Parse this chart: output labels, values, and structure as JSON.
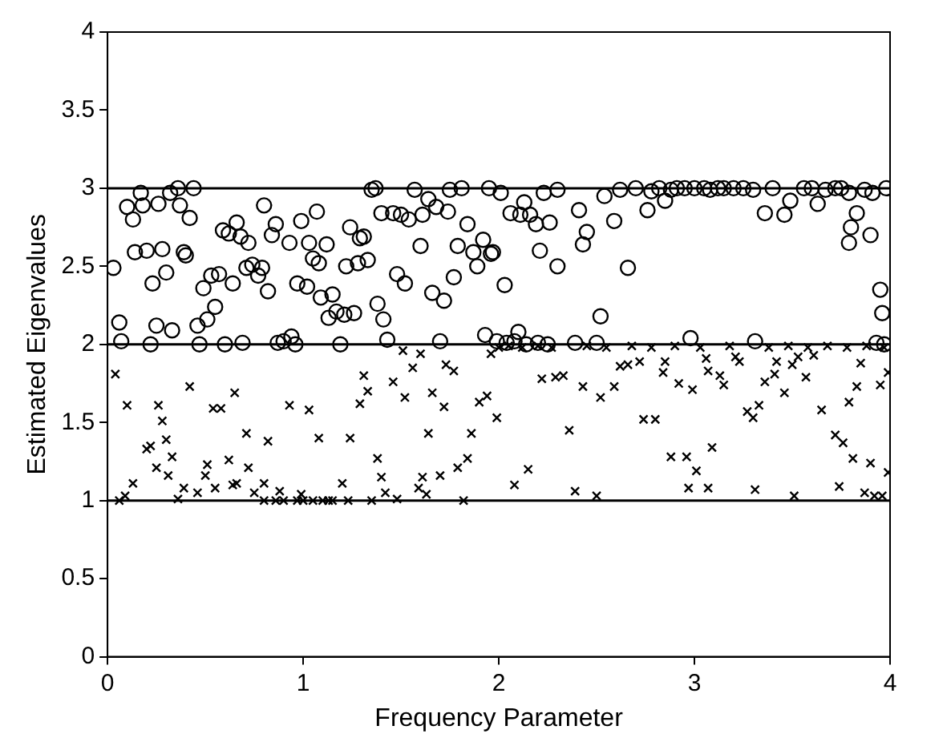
{
  "chart_data": {
    "type": "scatter",
    "xlabel": "Frequency Parameter",
    "ylabel": "Estimated Eigenvalues",
    "xlim": [
      0,
      4
    ],
    "xticks": [
      0,
      1,
      2,
      3,
      4
    ],
    "ylim": [
      0,
      4
    ],
    "yticks": [
      0,
      0.5,
      1,
      1.5,
      2,
      2.5,
      3,
      3.5,
      4
    ],
    "grid": false,
    "legend": false,
    "ref_lines": [
      {
        "axis": "y",
        "value": 1,
        "color": "#000000"
      },
      {
        "axis": "y",
        "value": 2,
        "color": "#000000"
      },
      {
        "axis": "y",
        "value": 3,
        "color": "#000000"
      }
    ],
    "series": [
      {
        "color": "#000000",
        "marker": "circle",
        "x": [
          0.03,
          0.06,
          0.07,
          0.1,
          0.13,
          0.17,
          0.18,
          0.14,
          0.2,
          0.22,
          0.23,
          0.25,
          0.26,
          0.28,
          0.3,
          0.32,
          0.33,
          0.36,
          0.37,
          0.39,
          0.4,
          0.42,
          0.44,
          0.46,
          0.47,
          0.49,
          0.51,
          0.53,
          0.55,
          0.57,
          0.59,
          0.6,
          0.62,
          0.64,
          0.66,
          0.68,
          0.69,
          0.71,
          0.72,
          0.74,
          0.77,
          0.79,
          0.8,
          0.82,
          0.84,
          0.86,
          0.87,
          0.9,
          0.93,
          0.94,
          0.96,
          0.97,
          0.99,
          1.02,
          1.03,
          1.05,
          1.07,
          1.08,
          1.09,
          1.12,
          1.13,
          1.15,
          1.17,
          1.19,
          1.21,
          1.22,
          1.24,
          1.26,
          1.28,
          1.29,
          1.31,
          1.33,
          1.35,
          1.37,
          1.38,
          1.4,
          1.41,
          1.43,
          1.46,
          1.48,
          1.5,
          1.52,
          1.54,
          1.57,
          1.6,
          1.61,
          1.64,
          1.66,
          1.68,
          1.7,
          1.72,
          1.74,
          1.75,
          1.77,
          1.79,
          1.81,
          1.84,
          1.87,
          1.89,
          1.92,
          1.93,
          1.95,
          1.96,
          1.97,
          1.99,
          2.01,
          2.03,
          2.06,
          2.1,
          2.11,
          2.13,
          2.16,
          2.19,
          2.21,
          2.23,
          2.26,
          2.3,
          2.3,
          2.39,
          2.41,
          2.43,
          2.45,
          2.5,
          2.52,
          2.54,
          2.59,
          2.66,
          2.62,
          2.7,
          2.76,
          2.78,
          2.85,
          2.91,
          2.98,
          3.0,
          3.12,
          3.2,
          3.31,
          3.36,
          3.46,
          3.49,
          3.56,
          3.63,
          3.72,
          3.79,
          3.83,
          3.91,
          3.95,
          3.96,
          3.97,
          3.98,
          3.9,
          3.8,
          3.79,
          2.04,
          2.08,
          2.14,
          2.2,
          2.25,
          2.82,
          2.88,
          2.95,
          3.05,
          3.08,
          3.15,
          3.25,
          3.3,
          3.4,
          3.6,
          3.67,
          3.75,
          3.87,
          3.93
        ],
        "values": [
          2.49,
          2.14,
          2.02,
          2.88,
          2.8,
          2.97,
          2.89,
          2.59,
          2.6,
          2.0,
          2.39,
          2.12,
          2.9,
          2.61,
          2.46,
          2.97,
          2.09,
          3.0,
          2.89,
          2.59,
          2.57,
          2.81,
          3.0,
          2.12,
          2.0,
          2.36,
          2.16,
          2.44,
          2.24,
          2.45,
          2.73,
          2.0,
          2.71,
          2.39,
          2.78,
          2.69,
          2.01,
          2.49,
          2.65,
          2.51,
          2.44,
          2.49,
          2.89,
          2.34,
          2.7,
          2.77,
          2.01,
          2.02,
          2.65,
          2.05,
          2.0,
          2.39,
          2.79,
          2.37,
          2.65,
          2.55,
          2.85,
          2.52,
          2.3,
          2.64,
          2.17,
          2.32,
          2.21,
          2.0,
          2.19,
          2.5,
          2.75,
          2.2,
          2.52,
          2.68,
          2.69,
          2.54,
          2.99,
          3.0,
          2.26,
          2.84,
          2.16,
          2.03,
          2.84,
          2.45,
          2.83,
          2.39,
          2.8,
          2.99,
          2.63,
          2.83,
          2.93,
          2.33,
          2.88,
          2.02,
          2.28,
          2.85,
          2.99,
          2.43,
          2.63,
          3.0,
          2.77,
          2.59,
          2.5,
          2.67,
          2.06,
          3.0,
          2.58,
          2.59,
          2.02,
          2.97,
          2.38,
          2.84,
          2.08,
          2.83,
          2.91,
          2.83,
          2.77,
          2.6,
          2.97,
          2.78,
          2.5,
          2.99,
          2.01,
          2.86,
          2.64,
          2.72,
          2.01,
          2.18,
          2.95,
          2.79,
          2.49,
          2.99,
          3.0,
          2.86,
          2.98,
          2.92,
          3.0,
          2.04,
          3.0,
          3.0,
          3.0,
          2.02,
          2.84,
          2.83,
          2.92,
          3.0,
          2.9,
          3.0,
          2.97,
          2.84,
          2.97,
          2.35,
          2.2,
          2.0,
          3.0,
          2.7,
          2.75,
          2.65,
          2.01,
          2.02,
          2.0,
          2.01,
          2.0,
          3.0,
          2.99,
          3.0,
          3.0,
          2.99,
          3.0,
          3.0,
          2.99,
          3.0,
          3.0,
          2.99,
          3.0,
          2.99,
          2.01
        ]
      },
      {
        "color": "#000000",
        "marker": "cross",
        "x": [
          0.04,
          0.1,
          0.13,
          0.09,
          0.06,
          0.2,
          0.22,
          0.25,
          0.26,
          0.28,
          0.3,
          0.31,
          0.33,
          0.36,
          0.39,
          0.42,
          0.46,
          0.5,
          0.51,
          0.54,
          0.55,
          0.58,
          0.62,
          0.64,
          0.65,
          0.66,
          0.71,
          0.72,
          0.75,
          0.8,
          0.82,
          0.86,
          0.88,
          0.93,
          0.97,
          0.99,
          1.03,
          1.08,
          1.13,
          1.2,
          1.23,
          1.24,
          1.29,
          1.31,
          1.33,
          1.35,
          1.38,
          1.4,
          1.42,
          1.46,
          1.48,
          1.51,
          1.52,
          1.56,
          1.59,
          1.6,
          1.61,
          1.63,
          1.64,
          1.66,
          1.7,
          1.72,
          1.73,
          1.77,
          1.79,
          1.82,
          1.84,
          1.86,
          1.9,
          1.94,
          1.96,
          1.99,
          2.08,
          2.15,
          2.22,
          2.29,
          2.33,
          2.36,
          2.39,
          2.43,
          2.5,
          2.52,
          2.59,
          2.62,
          2.66,
          2.72,
          2.74,
          2.8,
          2.84,
          2.85,
          2.88,
          2.92,
          2.96,
          2.99,
          3.01,
          2.97,
          3.06,
          3.07,
          3.07,
          3.09,
          3.13,
          3.15,
          3.21,
          3.23,
          3.27,
          3.3,
          3.31,
          3.33,
          3.36,
          3.41,
          3.42,
          3.46,
          3.5,
          3.51,
          3.53,
          3.57,
          3.61,
          3.65,
          3.72,
          3.74,
          3.76,
          3.79,
          3.81,
          3.83,
          3.85,
          3.87,
          3.9,
          3.92,
          3.95,
          3.96,
          3.99,
          3.99,
          0.8,
          0.9,
          1.0,
          1.05,
          1.1,
          1.15,
          2.0,
          2.05,
          2.12,
          2.2,
          2.27,
          2.45,
          2.55,
          2.68,
          2.78,
          2.9,
          3.03,
          3.18,
          3.38,
          3.48,
          3.58,
          3.68,
          3.78,
          3.88,
          3.97
        ],
        "values": [
          1.81,
          1.61,
          1.11,
          1.03,
          1.0,
          1.33,
          1.35,
          1.21,
          1.61,
          1.51,
          1.39,
          1.16,
          1.28,
          1.01,
          1.08,
          1.73,
          1.05,
          1.16,
          1.23,
          1.59,
          1.08,
          1.59,
          1.26,
          1.1,
          1.69,
          1.11,
          1.43,
          1.21,
          1.05,
          1.11,
          1.38,
          1.0,
          1.06,
          1.61,
          1.0,
          1.04,
          1.58,
          1.4,
          1.0,
          1.11,
          1.0,
          1.4,
          1.62,
          1.8,
          1.7,
          1.0,
          1.27,
          1.15,
          1.05,
          1.76,
          1.01,
          1.96,
          1.66,
          1.85,
          1.08,
          1.94,
          1.15,
          1.04,
          1.43,
          1.69,
          1.16,
          1.6,
          1.87,
          1.83,
          1.21,
          1.0,
          1.27,
          1.43,
          1.63,
          1.67,
          1.94,
          1.53,
          1.1,
          1.2,
          1.78,
          1.79,
          1.8,
          1.45,
          1.06,
          1.73,
          1.03,
          1.66,
          1.73,
          1.86,
          1.87,
          1.89,
          1.52,
          1.52,
          1.82,
          1.89,
          1.28,
          1.75,
          1.28,
          1.71,
          1.19,
          1.08,
          1.91,
          1.83,
          1.08,
          1.34,
          1.8,
          1.74,
          1.92,
          1.89,
          1.57,
          1.53,
          1.07,
          1.61,
          1.76,
          1.81,
          1.89,
          1.69,
          1.87,
          1.03,
          1.92,
          1.79,
          1.93,
          1.58,
          1.42,
          1.09,
          1.37,
          1.63,
          1.27,
          1.73,
          1.88,
          1.05,
          1.24,
          1.03,
          1.74,
          1.03,
          1.82,
          1.18,
          1.0,
          1.0,
          1.0,
          1.0,
          1.0,
          1.0,
          1.98,
          1.99,
          1.98,
          1.99,
          1.98,
          1.99,
          1.98,
          1.99,
          1.98,
          1.99,
          1.98,
          1.99,
          1.98,
          1.99,
          1.98,
          1.99,
          1.98,
          1.99,
          1.98
        ]
      }
    ]
  }
}
